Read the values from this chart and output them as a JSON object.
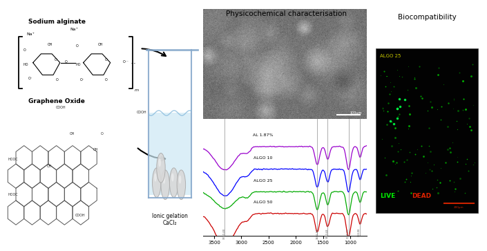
{
  "title": "Physicochemical characterisation",
  "biocompat_title": "Biocompatibility",
  "ionic_gelation_label": "Ionic gelation\nCaCl₂",
  "sodium_alginate_label": "Sodium alginate",
  "graphene_oxide_label": "Graphene Oxide",
  "algo_labels": [
    "AL 1.87%",
    "ALGO 10",
    "ALGO 25",
    "ALGO 50"
  ],
  "algo_colors": [
    "#9900CC",
    "#0000FF",
    "#00AA00",
    "#CC0000"
  ],
  "live_color": "#00FF00",
  "dead_color": "#FF0000",
  "algo25_label": "ALGO 25",
  "scale_bar": "200μm",
  "xaxis_ticks": [
    3500,
    3000,
    2500,
    2000,
    1500,
    1000
  ],
  "vlines": [
    3310,
    1605,
    1413,
    1030,
    818
  ],
  "vline_label_3310": "3310.40",
  "vline_label_1605": "1605.91",
  "vline_label_1413": "1413.44",
  "vline_label_1030": "1030.30",
  "vline_label_818": "818.08",
  "background_color": "#ffffff",
  "figure_width": 6.85,
  "figure_height": 3.39
}
